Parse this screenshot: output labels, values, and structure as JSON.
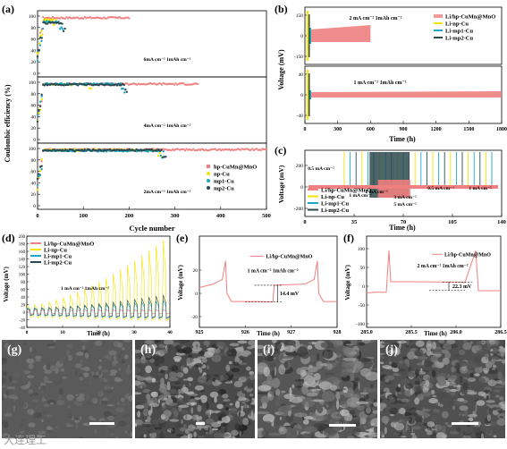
{
  "colors": {
    "pink": "#f08080",
    "yellow": "#f2e400",
    "cyan": "#1aa7c9",
    "dark": "#2c4a4f"
  },
  "chart_data": [
    {
      "id": "a",
      "type": "scatter",
      "panel_label": "(a)",
      "xlabel": "Cycle number",
      "ylabel": "Coulombic efficiency (%)",
      "xlim": [
        0,
        500
      ],
      "xticks": [
        0,
        100,
        200,
        300,
        400,
        500
      ],
      "legend": [
        "hp-CuMn@MnO",
        "np-Cu",
        "mp1-Cu",
        "mp2-Cu"
      ],
      "legend_position": "bottom-right",
      "subplots": [
        {
          "yticks": [
            0,
            20,
            40,
            60,
            80,
            100
          ],
          "condition": "6mA cm⁻²   1mAh cm⁻²",
          "series": [
            {
              "name": "hp-CuMn@MnO",
              "x_end": 200,
              "plateau": 97
            },
            {
              "name": "np-Cu",
              "x_end": 40,
              "plateau": 93
            },
            {
              "name": "mp1-Cu",
              "x_end": 55,
              "plateau": 90
            },
            {
              "name": "mp2-Cu",
              "x_end": 60,
              "plateau": 88
            }
          ]
        },
        {
          "yticks": [
            0,
            20,
            40,
            60,
            80,
            100
          ],
          "condition": "4mA cm⁻²   1mAh cm⁻²",
          "series": [
            {
              "name": "hp-CuMn@MnO",
              "x_end": 350,
              "plateau": 97
            },
            {
              "name": "np-Cu",
              "x_end": 120,
              "plateau": 96
            },
            {
              "name": "mp1-Cu",
              "x_end": 190,
              "plateau": 97
            },
            {
              "name": "mp2-Cu",
              "x_end": 195,
              "plateau": 96
            }
          ]
        },
        {
          "yticks": [
            0,
            20,
            40,
            60,
            80,
            100
          ],
          "condition": "2mA cm⁻²   1mAh cm⁻²",
          "series": [
            {
              "name": "hp-CuMn@MnO",
              "x_end": 500,
              "plateau": 98
            },
            {
              "name": "np-Cu",
              "x_end": 270,
              "plateau": 97
            },
            {
              "name": "mp1-Cu",
              "x_end": 275,
              "plateau": 96
            },
            {
              "name": "mp2-Cu",
              "x_end": 280,
              "plateau": 97
            }
          ]
        }
      ]
    },
    {
      "id": "b",
      "type": "line",
      "panel_label": "(b)",
      "xlabel": "Time (h)",
      "ylabel": "Voltage (mV)",
      "xlim": [
        0,
        1800
      ],
      "xticks": [
        0,
        300,
        600,
        900,
        1200,
        1500,
        1800
      ],
      "legend": [
        "Li/hp-CuMn@MnO",
        "Li-np-Cu",
        "Li-mp1-Cu",
        "Li-mp2-Cu"
      ],
      "legend_position": "top-right",
      "subplots": [
        {
          "yticks": [
            -150,
            0,
            150
          ],
          "condition": "2 mA cm⁻²   1mAh cm⁻²",
          "series": [
            {
              "name": "Li/hp-CuMn@MnO",
              "x_end": 600
            }
          ]
        },
        {
          "yticks": [
            -40,
            0,
            40
          ],
          "condition": "1 mA cm⁻²   1mAh cm⁻²",
          "series": [
            {
              "name": "Li/hp-CuMn@MnO",
              "x_end": 1800
            }
          ]
        }
      ]
    },
    {
      "id": "c",
      "type": "line",
      "panel_label": "(c)",
      "xlabel": "Time (h)",
      "ylabel": "Voltage (mV)",
      "xlim": [
        0,
        140
      ],
      "xticks": [
        0,
        35,
        70,
        105,
        140
      ],
      "yticks": [
        -200,
        0,
        200
      ],
      "legend": [
        "Li/hp-CuMn@MnO",
        "Li-np-Cu",
        "Li-mp1-Cu",
        "Li-mp2-Cu"
      ],
      "legend_position": "bottom-left",
      "rate_labels": [
        "0.5 mA cm⁻²",
        "1 mA cm⁻²",
        "2 mA cm⁻²",
        "3 mA cm⁻²",
        "5 mA cm⁻²",
        "0.5 mA cm⁻²",
        "1 mA cm⁻²"
      ]
    },
    {
      "id": "d",
      "type": "line",
      "panel_label": "(d)",
      "xlabel": "Time (h)",
      "ylabel": "Voltage (mV)",
      "xlim": [
        0,
        40
      ],
      "xticks": [
        0,
        10,
        20,
        30,
        40
      ],
      "ylim": [
        -40,
        200
      ],
      "yticks": [
        -40,
        -20,
        0,
        20,
        40,
        60,
        80,
        100,
        120,
        140,
        160,
        180,
        200
      ],
      "legend": [
        "Li/hp-CuMn@MnO",
        "Li-np-Cu",
        "Li-mp1-Cu",
        "Li-mp2-Cu"
      ],
      "annotation": "1 mA cm⁻²     1mAh cm⁻²"
    },
    {
      "id": "e",
      "type": "line",
      "panel_label": "(e)",
      "xlabel": "Time (h)",
      "ylabel": "Voltage (mV)",
      "xlim": [
        925,
        928
      ],
      "xticks": [
        925,
        926,
        927,
        928
      ],
      "yticks": [
        -20,
        0,
        20
      ],
      "legend": [
        "Li/hp-CuMn@MnO"
      ],
      "annotation": "1 mA cm⁻²     1mAh cm⁻²",
      "overpotential": "14.4 mV"
    },
    {
      "id": "f",
      "type": "line",
      "panel_label": "(f)",
      "xlabel": "Time (h)",
      "ylabel": "Voltage (mV)",
      "xlim": [
        285.0,
        286.5
      ],
      "xticks": [
        "285.0",
        "285.5",
        "286.0",
        "286.5"
      ],
      "yticks": [
        -100,
        -50,
        0,
        50,
        100
      ],
      "legend": [
        "Li/hp-CuMn@MnO"
      ],
      "annotation": "2 mA cm⁻²     1mAh cm⁻²",
      "overpotential": "22.3 mV"
    }
  ],
  "sem_images": [
    {
      "label": "(g)"
    },
    {
      "label": "(h)"
    },
    {
      "label": "(i)"
    },
    {
      "label": "(j)"
    }
  ],
  "watermark": "大连理工"
}
